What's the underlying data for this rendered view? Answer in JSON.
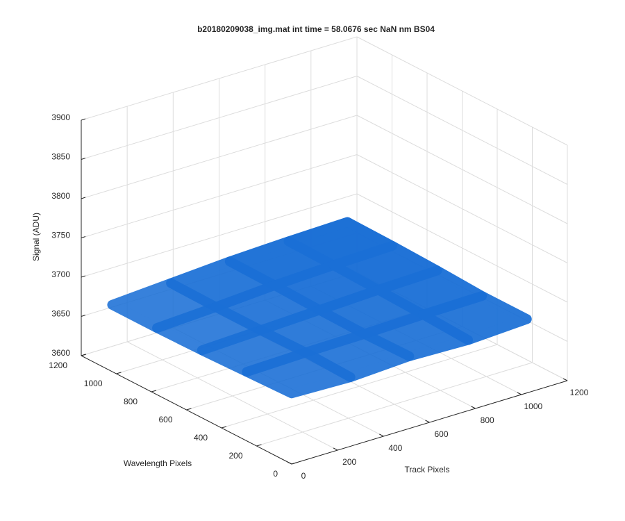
{
  "chart_data": {
    "type": "surface",
    "title": "b20180209038_img.mat int time = 58.0676 sec  NaN nm BS04",
    "xlabel": "Track Pixels",
    "ylabel": "Wavelength Pixels",
    "zlabel": "Signal (ADU)",
    "x": [
      0,
      256,
      512,
      768,
      1024
    ],
    "y": [
      0,
      256,
      512,
      768,
      1024
    ],
    "z": [
      [
        3690,
        3688,
        3692,
        3690,
        3694
      ],
      [
        3688,
        3690,
        3691,
        3693,
        3694
      ],
      [
        3686,
        3689,
        3692,
        3695,
        3697
      ],
      [
        3685,
        3689,
        3694,
        3697,
        3699
      ],
      [
        3685,
        3690,
        3695,
        3698,
        3700
      ]
    ],
    "color": "#1a6fd6",
    "xlim": [
      0,
      1200
    ],
    "ylim": [
      0,
      1200
    ],
    "zlim": [
      3600,
      3900
    ],
    "xticks": [
      0,
      200,
      400,
      600,
      800,
      1000,
      1200
    ],
    "yticks": [
      0,
      200,
      400,
      600,
      800,
      1000,
      1200
    ],
    "zticks": [
      3600,
      3650,
      3700,
      3750,
      3800,
      3850,
      3900
    ],
    "grid": true
  }
}
